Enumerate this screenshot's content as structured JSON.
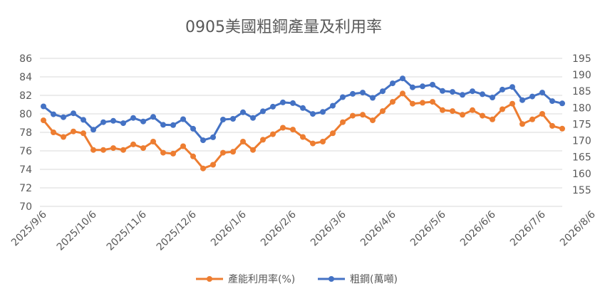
{
  "chart_data": {
    "type": "line",
    "title": "0905美國粗鋼產量及利用率",
    "x_tick_labels": [
      "2025/9/6",
      "2025/10/6",
      "2025/11/6",
      "2025/12/6",
      "2026/1/6",
      "2026/2/6",
      "2026/3/6",
      "2026/4/6",
      "2026/5/6",
      "2026/6/6",
      "2026/7/6",
      "2026/8/6"
    ],
    "y_left": {
      "min": 70,
      "max": 86,
      "step": 2,
      "ticks": [
        "70",
        "72",
        "74",
        "76",
        "78",
        "80",
        "82",
        "84",
        "86"
      ]
    },
    "y_right": {
      "min": 150,
      "max": 195,
      "step": 5,
      "ticks": [
        "155",
        "160",
        "165",
        "170",
        "175",
        "180",
        "185",
        "190",
        "195"
      ]
    },
    "grid": true,
    "legend_position": "bottom",
    "series": [
      {
        "name": "產能利用率(%)",
        "axis": "left",
        "color": "#ED7D31",
        "values": [
          79.3,
          78.0,
          77.5,
          78.1,
          77.9,
          76.1,
          76.1,
          76.3,
          76.1,
          76.7,
          76.3,
          77.0,
          75.8,
          75.7,
          76.5,
          75.4,
          74.1,
          74.5,
          75.8,
          75.9,
          77.0,
          76.1,
          77.2,
          77.8,
          78.5,
          78.3,
          77.5,
          76.8,
          77.0,
          77.9,
          79.1,
          79.8,
          79.9,
          79.3,
          80.3,
          81.3,
          82.2,
          81.1,
          81.2,
          81.3,
          80.4,
          80.3,
          79.9,
          80.4,
          79.8,
          79.4,
          80.5,
          81.1,
          78.9,
          79.4,
          80.0,
          78.7,
          78.4
        ]
      },
      {
        "name": "粗鋼(萬噸)",
        "axis": "right",
        "color": "#4472C4",
        "values": [
          180.4,
          178.0,
          177.1,
          178.3,
          176.3,
          173.3,
          175.6,
          176.0,
          175.3,
          176.9,
          175.8,
          177.2,
          174.8,
          174.7,
          176.5,
          173.6,
          170.1,
          171.0,
          176.4,
          176.6,
          178.6,
          176.9,
          178.9,
          180.3,
          181.6,
          181.4,
          179.9,
          178.1,
          178.7,
          180.6,
          183.2,
          184.2,
          184.6,
          183.0,
          185.0,
          187.4,
          188.9,
          186.2,
          186.5,
          187.0,
          185.1,
          184.8,
          183.9,
          185.0,
          184.1,
          183.1,
          185.5,
          186.3,
          182.3,
          183.4,
          184.6,
          182.0,
          181.3
        ]
      }
    ]
  }
}
